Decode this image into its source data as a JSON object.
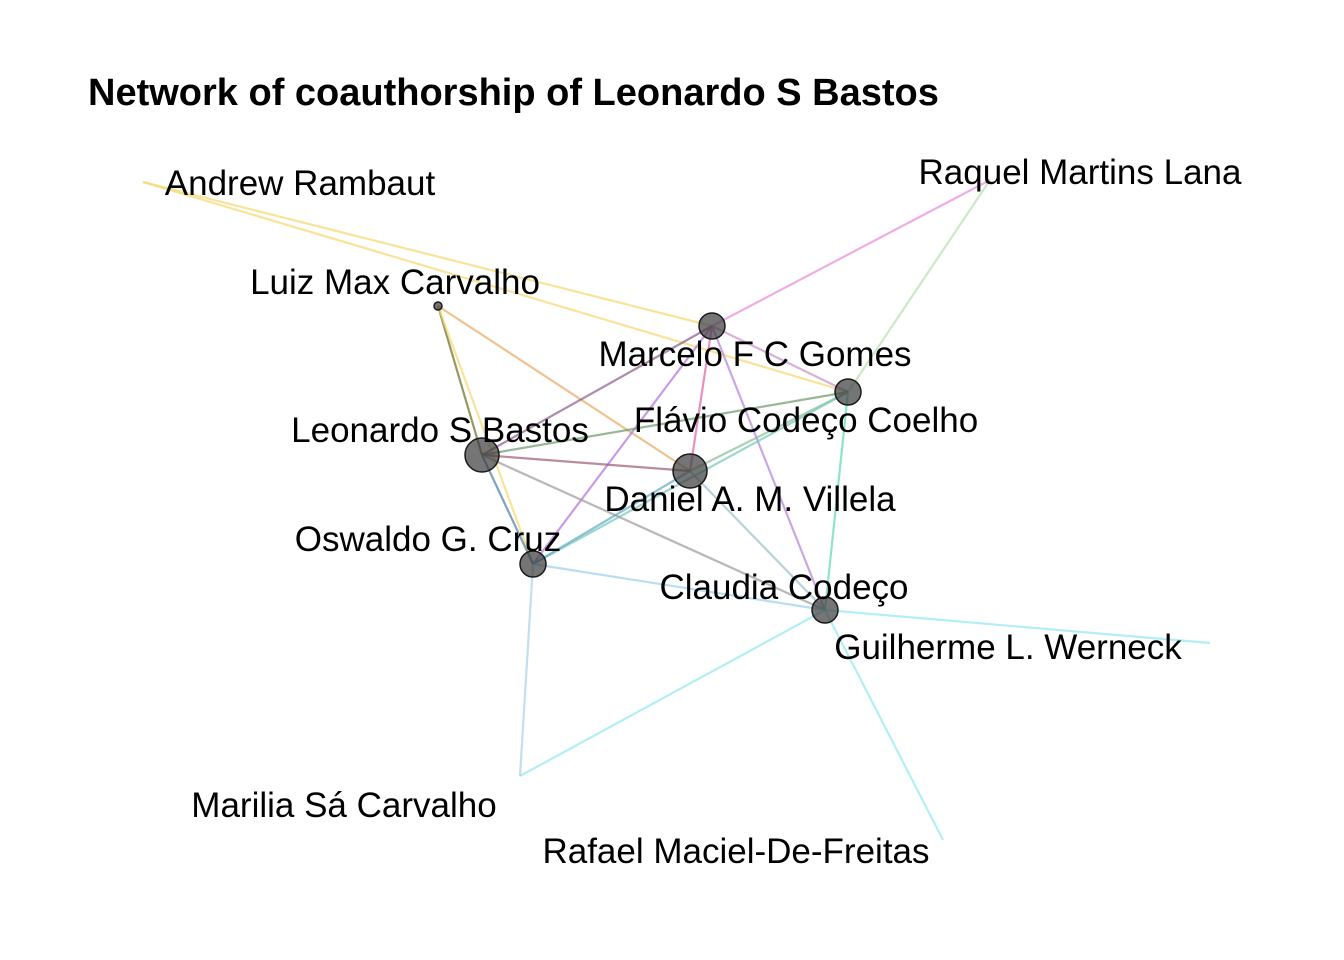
{
  "title": "Network of coauthorship of Leonardo S Bastos",
  "nodes": [
    {
      "id": "lsb",
      "name": "Leonardo S Bastos",
      "size": "large"
    },
    {
      "id": "dav",
      "name": "Daniel A. M. Villela",
      "size": "large"
    },
    {
      "id": "mfcg",
      "name": "Marcelo F C Gomes",
      "size": "medium"
    },
    {
      "id": "fcc",
      "name": "Flávio Codeço Coelho",
      "size": "medium"
    },
    {
      "id": "ogc",
      "name": "Oswaldo G. Cruz",
      "size": "medium"
    },
    {
      "id": "cc",
      "name": "Claudia Codeço",
      "size": "medium"
    },
    {
      "id": "lmc",
      "name": "Luiz Max Carvalho",
      "size": "small"
    },
    {
      "id": "ar",
      "name": "Andrew Rambaut",
      "size": "none"
    },
    {
      "id": "rml",
      "name": "Raquel Martins Lana",
      "size": "none"
    },
    {
      "id": "glw",
      "name": "Guilherme L. Werneck",
      "size": "none"
    },
    {
      "id": "msc",
      "name": "Marilia Sá Carvalho",
      "size": "none"
    },
    {
      "id": "rmdf",
      "name": "Rafael Maciel-De-Freitas",
      "size": "none"
    }
  ],
  "edges": [
    {
      "source": "ar",
      "target": "mfcg",
      "color": "#f5d76e"
    },
    {
      "source": "ar",
      "target": "fcc",
      "color": "#f5d76e"
    },
    {
      "source": "lmc",
      "target": "lsb",
      "color": "#6b6b20"
    },
    {
      "source": "lmc",
      "target": "ogc",
      "color": "#f5d76e"
    },
    {
      "source": "lmc",
      "target": "dav",
      "color": "#e8a860"
    },
    {
      "source": "rml",
      "target": "mfcg",
      "color": "#e88ad8"
    },
    {
      "source": "rml",
      "target": "fcc",
      "color": "#b8e0a8"
    },
    {
      "source": "mfcg",
      "target": "lsb",
      "color": "#8a5a8a"
    },
    {
      "source": "mfcg",
      "target": "dav",
      "color": "#e060a8"
    },
    {
      "source": "mfcg",
      "target": "ogc",
      "color": "#b070d8"
    },
    {
      "source": "mfcg",
      "target": "cc",
      "color": "#b080d8"
    },
    {
      "source": "mfcg",
      "target": "fcc",
      "color": "#c890c8"
    },
    {
      "source": "fcc",
      "target": "lsb",
      "color": "#6a9a6a"
    },
    {
      "source": "fcc",
      "target": "dav",
      "color": "#8aba9a"
    },
    {
      "source": "fcc",
      "target": "cc",
      "color": "#60d8b0"
    },
    {
      "source": "fcc",
      "target": "ogc",
      "color": "#70c8b8"
    },
    {
      "source": "lsb",
      "target": "dav",
      "color": "#a05a70"
    },
    {
      "source": "lsb",
      "target": "ogc",
      "color": "#4a7aa0"
    },
    {
      "source": "lsb",
      "target": "cc",
      "color": "#9a9a9a"
    },
    {
      "source": "dav",
      "target": "ogc",
      "color": "#60a8c8"
    },
    {
      "source": "dav",
      "target": "cc",
      "color": "#9ac0c8"
    },
    {
      "source": "ogc",
      "target": "cc",
      "color": "#9ad0e8"
    },
    {
      "source": "ogc",
      "target": "msc",
      "color": "#a8d0e8"
    },
    {
      "source": "cc",
      "target": "msc",
      "color": "#90e8f0"
    },
    {
      "source": "cc",
      "target": "glw",
      "color": "#90e8f0"
    },
    {
      "source": "cc",
      "target": "rmdf",
      "color": "#90e8f0"
    }
  ]
}
